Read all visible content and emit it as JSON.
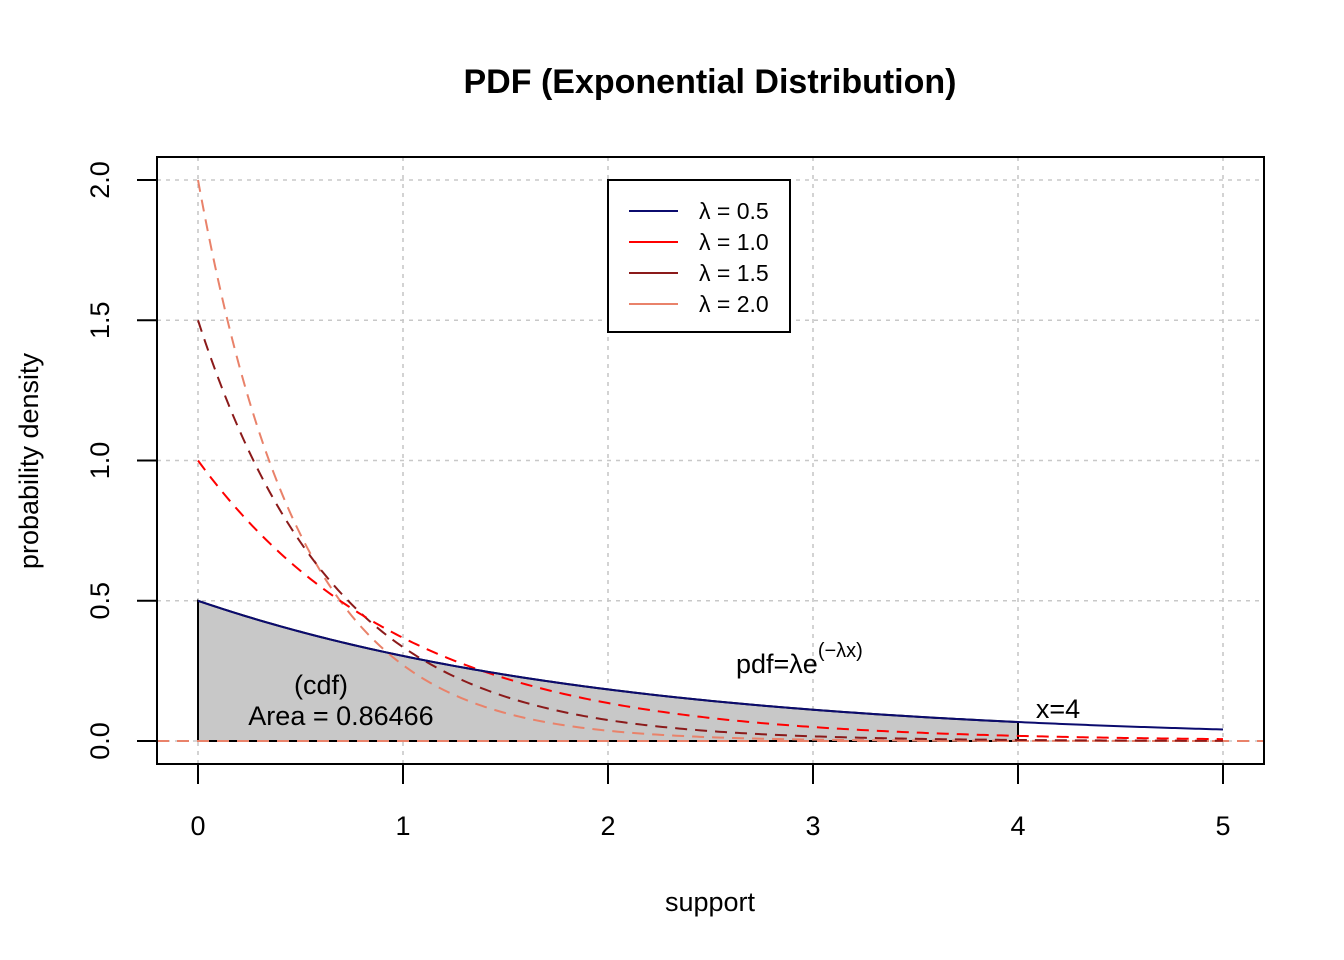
{
  "chart_data": {
    "type": "line",
    "title": "PDF (Exponential Distribution)",
    "xlabel": "support",
    "ylabel": "probability density",
    "xlim": [
      0,
      5
    ],
    "ylim": [
      0,
      2
    ],
    "x_ticks": [
      "0",
      "1",
      "2",
      "3",
      "4",
      "5"
    ],
    "y_ticks": [
      "0.0",
      "0.5",
      "1.0",
      "1.5",
      "2.0"
    ],
    "grid": true,
    "legend_position": "top-center",
    "series": [
      {
        "name": "λ = 0.5",
        "rate": 0.5,
        "color": "#0b0b6e",
        "style": "solid",
        "x": [
          0,
          0.5,
          1,
          1.5,
          2,
          2.5,
          3,
          3.5,
          4,
          4.5,
          5
        ],
        "values": [
          0.5,
          0.389,
          0.303,
          0.236,
          0.184,
          0.143,
          0.112,
          0.087,
          0.068,
          0.053,
          0.041
        ]
      },
      {
        "name": "λ = 1.0",
        "rate": 1.0,
        "color": "#ff0000",
        "style": "dashed",
        "x": [
          0,
          0.5,
          1,
          1.5,
          2,
          2.5,
          3,
          3.5,
          4,
          4.5,
          5
        ],
        "values": [
          1.0,
          0.607,
          0.368,
          0.223,
          0.135,
          0.082,
          0.05,
          0.03,
          0.018,
          0.011,
          0.007
        ]
      },
      {
        "name": "λ = 1.5",
        "rate": 1.5,
        "color": "#8b1a1a",
        "style": "dashed",
        "x": [
          0,
          0.5,
          1,
          1.5,
          2,
          2.5,
          3,
          3.5,
          4,
          4.5,
          5
        ],
        "values": [
          1.5,
          0.708,
          0.335,
          0.158,
          0.075,
          0.035,
          0.017,
          0.008,
          0.004,
          0.002,
          0.001
        ]
      },
      {
        "name": "λ = 2.0",
        "rate": 2.0,
        "color": "#e9826a",
        "style": "dashed",
        "x": [
          0,
          0.5,
          1,
          1.5,
          2,
          2.5,
          3,
          3.5,
          4,
          4.5,
          5
        ],
        "values": [
          2.0,
          0.736,
          0.271,
          0.1,
          0.037,
          0.013,
          0.005,
          0.002,
          0.001,
          0.0,
          0.0
        ]
      }
    ],
    "shaded_area": {
      "series": "λ = 0.5",
      "from": 0,
      "to": 4,
      "color": "#c8c8c8"
    },
    "cutoff_x": 4,
    "annotations": {
      "cdf": "(cdf)",
      "area": "Area = 0.86466",
      "cutoff": "x=4",
      "formula_base": "pdf=λe",
      "formula_exp": "(−λx)"
    }
  }
}
